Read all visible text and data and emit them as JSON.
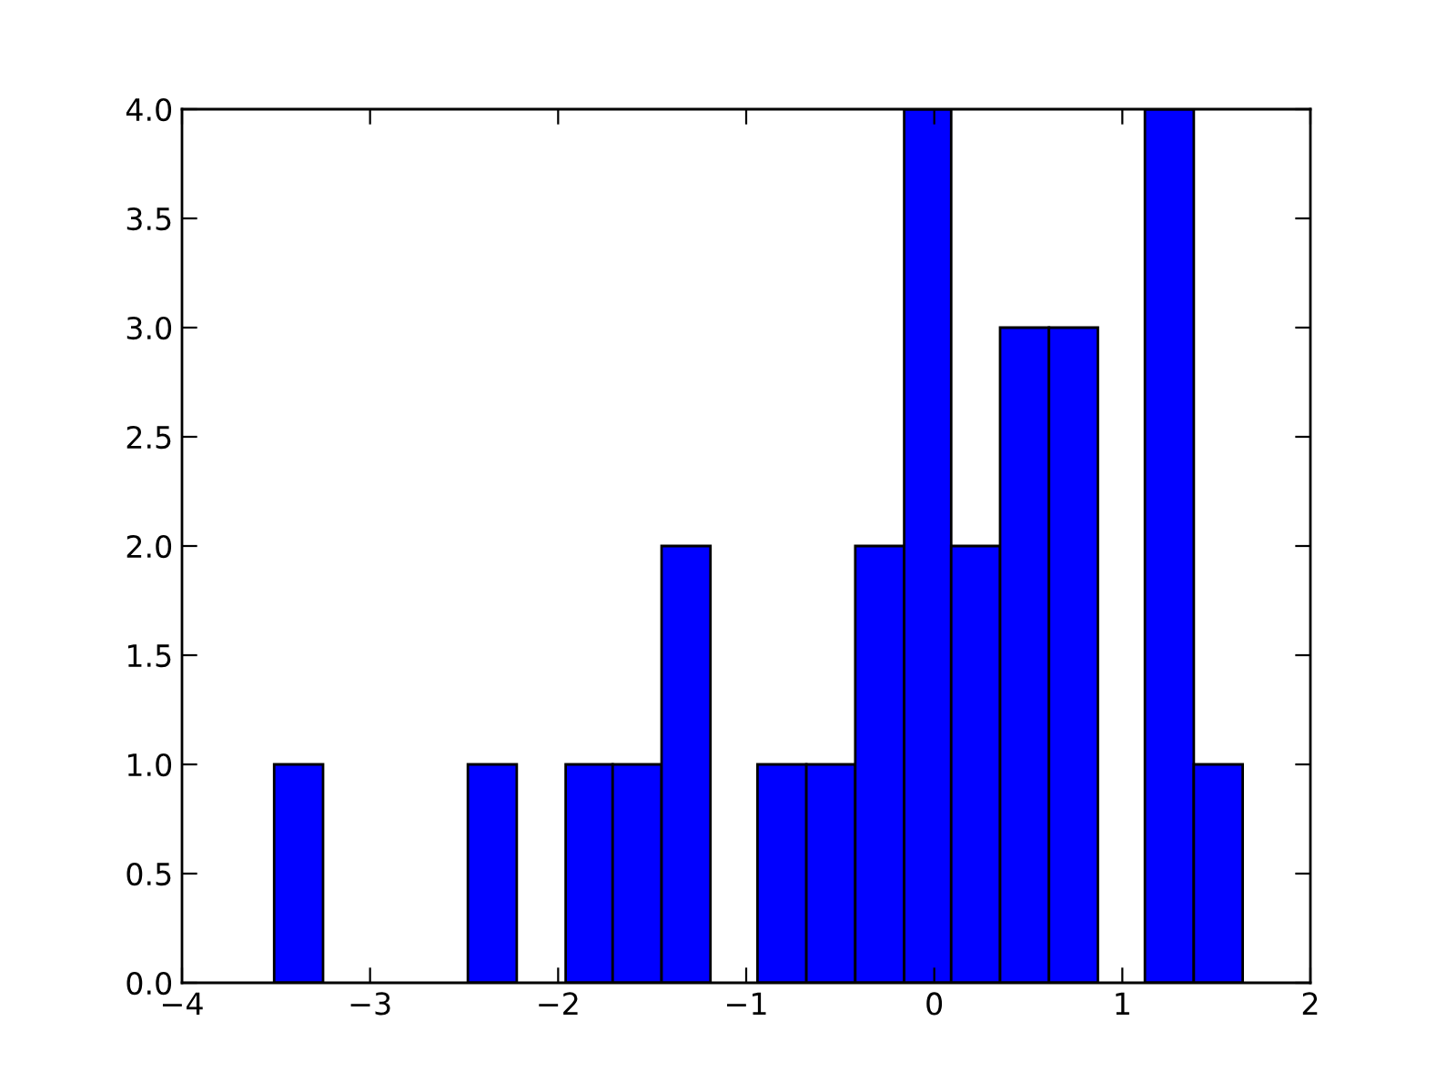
{
  "chart_data": {
    "type": "histogram",
    "bins": [
      -3.51,
      -3.25,
      -2.48,
      -2.22,
      -1.96,
      -1.71,
      -1.45,
      -1.19,
      -0.94,
      -0.68,
      -0.42,
      -0.16,
      0.09,
      0.35,
      0.61,
      0.87,
      1.12,
      1.38,
      1.64
    ],
    "values": [
      1,
      0,
      1,
      0,
      1,
      1,
      2,
      0,
      1,
      1,
      2,
      4,
      2,
      3,
      3,
      0,
      4,
      1
    ],
    "color": "#0000ff",
    "xlim": [
      -4,
      2
    ],
    "xticks": [
      {
        "value": -4,
        "label": "−4"
      },
      {
        "value": -3,
        "label": "−3"
      },
      {
        "value": -2,
        "label": "−2"
      },
      {
        "value": -1,
        "label": "−1"
      },
      0,
      1,
      2
    ],
    "ylim": [
      0,
      4
    ],
    "yticks": [
      {
        "value": 0,
        "label": "0.0"
      },
      {
        "value": 0.5,
        "label": "0.5"
      },
      {
        "value": 1,
        "label": "1.0"
      },
      {
        "value": 1.5,
        "label": "1.5"
      },
      {
        "value": 2,
        "label": "2.0"
      },
      {
        "value": 2.5,
        "label": "2.5"
      },
      {
        "value": 3,
        "label": "3.0"
      },
      {
        "value": 3.5,
        "label": "3.5"
      },
      {
        "value": 4,
        "label": "4.0"
      }
    ],
    "grid": false
  }
}
